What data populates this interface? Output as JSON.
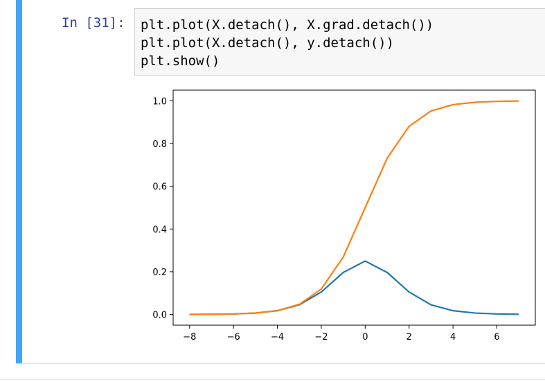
{
  "prompt": "In [31]:",
  "code_lines": [
    "plt.plot(X.detach(), X.grad.detach())",
    "plt.plot(X.detach(), y.detach())",
    "plt.show()"
  ],
  "colors": {
    "accent": "#42a5f5",
    "prompt": "#303f9f",
    "series1": "#1f77b4",
    "series2": "#ff7f0e"
  },
  "chart_data": {
    "type": "line",
    "x": [
      -8,
      -7,
      -6,
      -5,
      -4,
      -3,
      -2,
      -1,
      0,
      1,
      2,
      3,
      4,
      5,
      6,
      7
    ],
    "series": [
      {
        "values": [
          0.0003,
          0.0009,
          0.0025,
          0.0066,
          0.0177,
          0.0452,
          0.105,
          0.1966,
          0.25,
          0.1966,
          0.105,
          0.0452,
          0.0177,
          0.0066,
          0.0025,
          0.0009
        ]
      },
      {
        "values": [
          0.0003,
          0.0009,
          0.0025,
          0.0067,
          0.018,
          0.0474,
          0.1192,
          0.2689,
          0.5,
          0.7311,
          0.8808,
          0.9526,
          0.982,
          0.9933,
          0.9975,
          0.9991
        ]
      }
    ],
    "xticks": [
      "−8",
      "−6",
      "−4",
      "−2",
      "0",
      "2",
      "4",
      "6"
    ],
    "xtick_values": [
      -8,
      -6,
      -4,
      -2,
      0,
      2,
      4,
      6
    ],
    "yticks": [
      "0.0",
      "0.2",
      "0.4",
      "0.6",
      "0.8",
      "1.0"
    ],
    "ytick_values": [
      0,
      0.2,
      0.4,
      0.6,
      0.8,
      1.0
    ],
    "xlim": [
      -8.75,
      7.75
    ],
    "ylim": [
      -0.05,
      1.05
    ],
    "grid": false
  }
}
